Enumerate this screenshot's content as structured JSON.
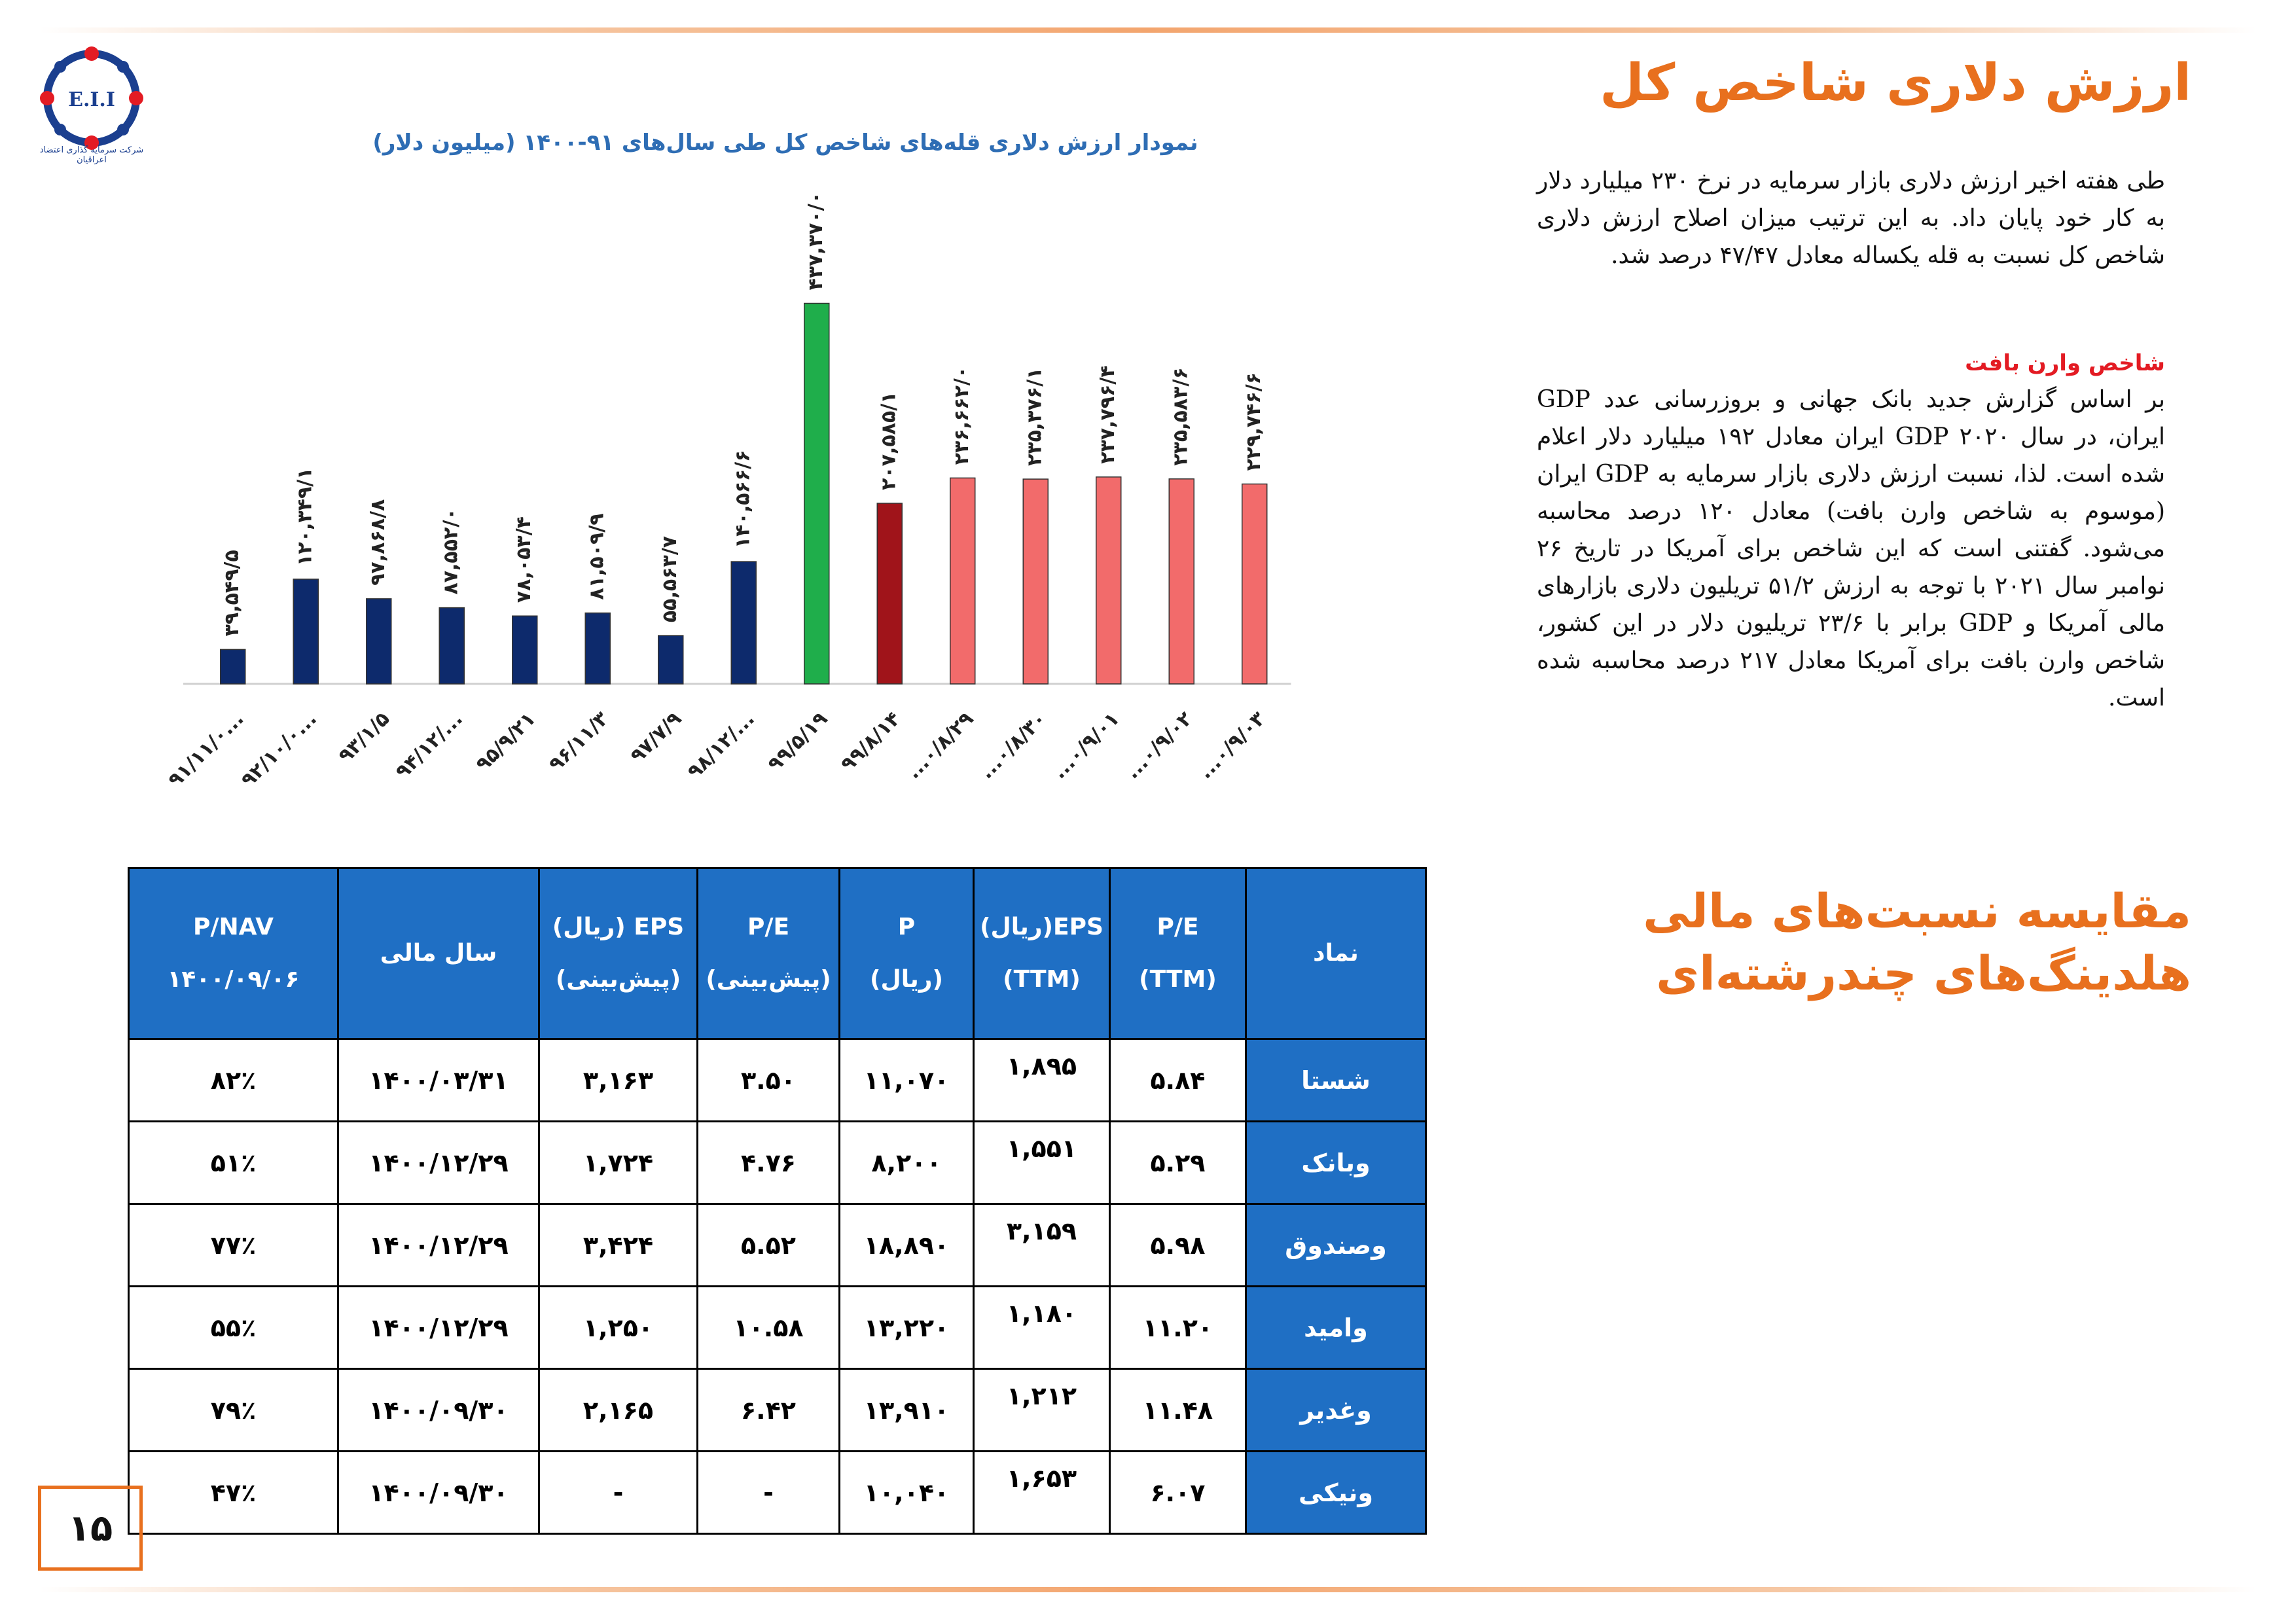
{
  "header": {
    "logo_text": "E.I.I",
    "logo_caption": "شرکت سرمایه گذاری اعتضاد اعراقیان"
  },
  "section1": {
    "title": "ارزش دلاری شاخص کل",
    "paragraph1": "طی هفته اخیر ارزش دلاری بازار سرمایه در نرخ ۲۳۰ میلیارد دلار به کار خود پایان داد. به این ترتیب میزان اصلاح ارزش دلاری شاخص کل نسبت به قله یکساله معادل ۴۷/۴۷ درصد شد.",
    "subtitle": "شاخص وارن بافت",
    "paragraph2": "بر اساس گزارش جدید بانک جهانی و بروزرسانی عدد GDP ایران، در سال ۲۰۲۰ GDP ایران معادل ۱۹۲ میلیارد دلار اعلام شده است. لذا، نسبت ارزش دلاری بازار سرمایه به GDP ایران (موسوم به شاخص وارن بافت) معادل ۱۲۰ درصد محاسبه می‌شود. گفتنی است که این شاخص برای آمریکا در تاریخ ۲۶ نوامبر سال ۲۰۲۱ با توجه به ارزش ۵۱/۲ تریلیون دلاری بازارهای مالی آمریکا و GDP برابر با ۲۳/۶ تریلیون دلار در این کشور، شاخص وارن بافت برای آمریکا معادل ۲۱۷ درصد محاسبه شده است."
  },
  "chart_data": {
    "type": "bar",
    "title": "نمودار ارزش دلاری قله‌های شاخص کل طی سال‌های ۹۱-۱۴۰۰ (میلیون دلار)",
    "categories": [
      "۹۱/۱۱/۰...",
      "۹۲/۱۰/۰...",
      "۹۳/۱/۵",
      "۹۴/۱۲/...",
      "۹۵/۹/۲۱",
      "۹۶/۱۱/۳",
      "۹۷/۷/۹",
      "۹۸/۱۲/...",
      "۹۹/۵/۱۹",
      "۹۹/۸/۱۴",
      "...۰/۸/۲۹",
      "...۰/۸/۳۰",
      "...۰/۹/۰۱",
      "...۰/۹/۰۲",
      "...۰/۹/۰۳"
    ],
    "values": [
      39549.5,
      120349.1,
      97868.8,
      87552.0,
      78053.4,
      81509.9,
      55563.7,
      140566.6,
      437370.0,
      207585.1,
      236662.0,
      235376.1,
      237796.4,
      235583.6,
      229746.6
    ],
    "value_labels": [
      "۳۹,۵۴۹/۵",
      "۱۲۰,۳۴۹/۱",
      "۹۷,۸۶۸/۸",
      "۸۷,۵۵۲/۰",
      "۷۸,۰۵۳/۴",
      "۸۱,۵۰۹/۹",
      "۵۵,۵۶۳/۷",
      "۱۴۰,۵۶۶/۶",
      "۴۳۷,۳۷۰/۰",
      "۲۰۷,۵۸۵/۱",
      "۲۳۶,۶۶۲/۰",
      "۲۳۵,۳۷۶/۱",
      "۲۳۷,۷۹۶/۴",
      "۲۳۵,۵۸۳/۶",
      "۲۲۹,۷۴۶/۶"
    ],
    "colors": [
      "#0d2a6c",
      "#0d2a6c",
      "#0d2a6c",
      "#0d2a6c",
      "#0d2a6c",
      "#0d2a6c",
      "#0d2a6c",
      "#0d2a6c",
      "#1fae4b",
      "#a0141a",
      "#f26b6b",
      "#f26b6b",
      "#f26b6b",
      "#f26b6b",
      "#f26b6b"
    ],
    "ylim": [
      0,
      440000
    ],
    "grid": false,
    "legend": "none"
  },
  "section2": {
    "title": "مقایسه نسبت‌های مالی\nهلدینگ‌های چندرشته‌ای"
  },
  "table": {
    "headers": [
      {
        "l1": "نماد",
        "l2": ""
      },
      {
        "l1": "P/E",
        "l2": "(TTM)"
      },
      {
        "l1": "EPS(ریال)",
        "l2": "(TTM)"
      },
      {
        "l1": "P",
        "l2": "(ریال)"
      },
      {
        "l1": "P/E",
        "l2": "(پیش‌بینی)"
      },
      {
        "l1": "EPS (ریال)",
        "l2": "(پیش‌بینی)"
      },
      {
        "l1": "سال مالی",
        "l2": ""
      },
      {
        "l1": "P/NAV",
        "l2": "۱۴۰۰/۰۹/۰۶"
      }
    ],
    "rows": [
      [
        "شستا",
        "۵.۸۴",
        "۱,۸۹۵",
        "۱۱,۰۷۰",
        "۳.۵۰",
        "۳,۱۶۳",
        "۱۴۰۰/۰۳/۳۱",
        "۸۲٪"
      ],
      [
        "وبانک",
        "۵.۲۹",
        "۱,۵۵۱",
        "۸,۲۰۰",
        "۴.۷۶",
        "۱,۷۲۴",
        "۱۴۰۰/۱۲/۲۹",
        "۵۱٪"
      ],
      [
        "وصندوق",
        "۵.۹۸",
        "۳,۱۵۹",
        "۱۸,۸۹۰",
        "۵.۵۲",
        "۳,۴۲۴",
        "۱۴۰۰/۱۲/۲۹",
        "۷۷٪"
      ],
      [
        "وامید",
        "۱۱.۲۰",
        "۱,۱۸۰",
        "۱۳,۲۲۰",
        "۱۰.۵۸",
        "۱,۲۵۰",
        "۱۴۰۰/۱۲/۲۹",
        "۵۵٪"
      ],
      [
        "وغدیر",
        "۱۱.۴۸",
        "۱,۲۱۲",
        "۱۳,۹۱۰",
        "۶.۴۲",
        "۲,۱۶۵",
        "۱۴۰۰/۰۹/۳۰",
        "۷۹٪"
      ],
      [
        "ونیکی",
        "۶.۰۷",
        "۱,۶۵۳",
        "۱۰,۰۴۰",
        "-",
        "-",
        "۱۴۰۰/۰۹/۳۰",
        "۴۷٪"
      ]
    ]
  },
  "footer": {
    "page_number": "۱۵"
  }
}
